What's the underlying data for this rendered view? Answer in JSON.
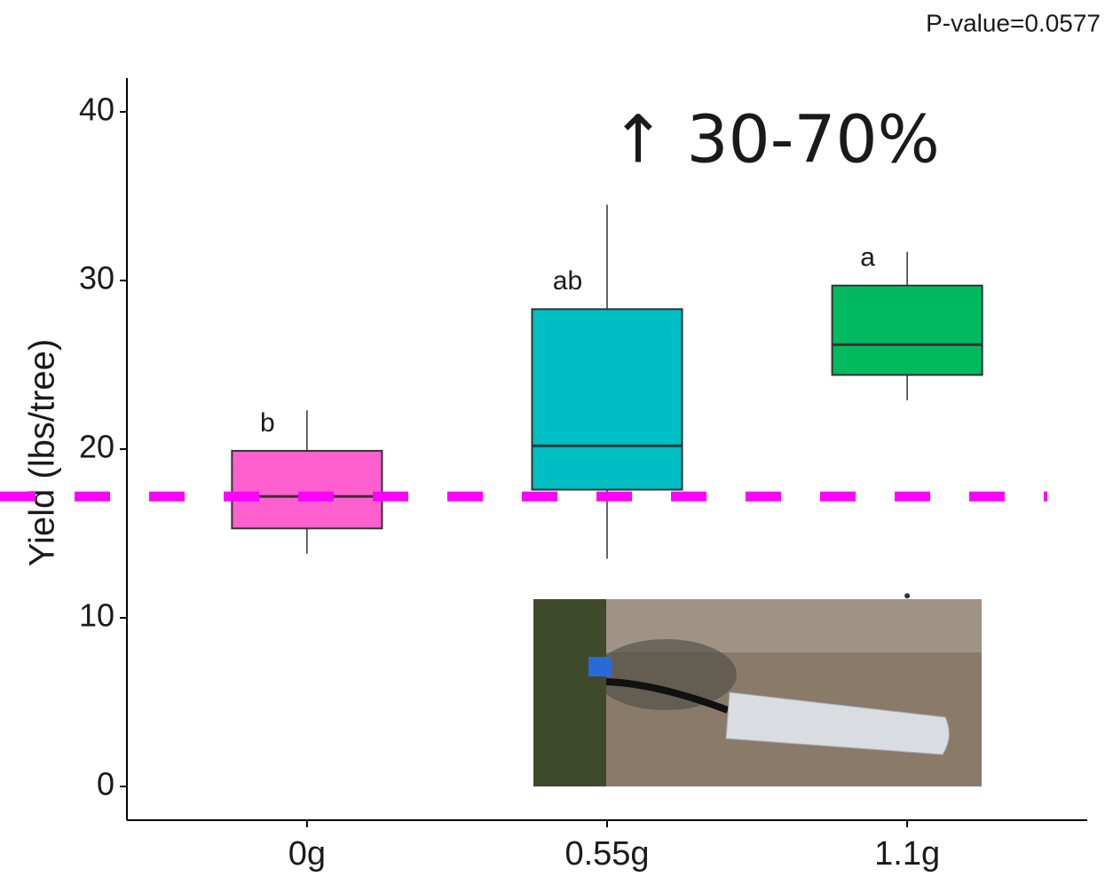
{
  "chart_data": {
    "type": "box",
    "y_label": "Yield (lbs/tree)",
    "categories": [
      "0g",
      "0.55g",
      "1.1g"
    ],
    "boxes": [
      {
        "whisker_low": 13.8,
        "q1": 15.3,
        "median": 17.2,
        "q3": 19.9,
        "whisker_high": 22.3,
        "color": "#ff5fcf",
        "letter": "b",
        "outliers": []
      },
      {
        "whisker_low": 13.5,
        "q1": 17.6,
        "median": 20.2,
        "q3": 28.3,
        "whisker_high": 34.5,
        "color": "#00bfc4",
        "letter": "ab",
        "outliers": []
      },
      {
        "whisker_low": 22.9,
        "q1": 24.4,
        "median": 26.2,
        "q3": 29.7,
        "whisker_high": 31.7,
        "color": "#00ba60",
        "letter": "a",
        "outliers": [
          11.3
        ]
      }
    ],
    "ylim": [
      -2,
      42
    ],
    "yticks": [
      0,
      10,
      20,
      30,
      40
    ],
    "reference_line": {
      "value": 17.2,
      "color": "#ff00ff"
    },
    "annotation": {
      "text": "↑ 30-70%",
      "color": "#00a94f"
    },
    "p_value_text": "P-value=0.0577"
  }
}
